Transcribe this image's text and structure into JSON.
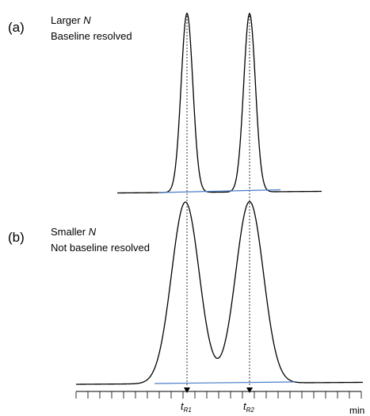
{
  "panels": [
    {
      "letter": "(a)",
      "line1_prefix": "Larger ",
      "line1_symbol": "N",
      "line2": "Baseline resolved"
    },
    {
      "letter": "(b)",
      "line1_prefix": "Smaller ",
      "line1_symbol": "N",
      "line2": "Not baseline resolved"
    }
  ],
  "axis": {
    "marker1_main": "t",
    "marker1_sub": "R1",
    "marker2_main": "t",
    "marker2_sub": "R2",
    "unit": "min"
  },
  "colors": {
    "trace": "#000000",
    "baseline": "#4a7cc8",
    "guide": "#000000"
  }
}
